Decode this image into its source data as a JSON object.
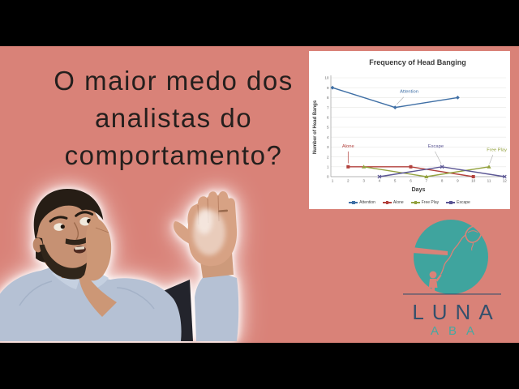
{
  "page": {
    "background": "#d98278",
    "letterbox": "#000000"
  },
  "headline": {
    "lines": [
      "O maior medo dos",
      "analistas do",
      "comportamento?"
    ],
    "color": "#241f1d"
  },
  "chart_data": {
    "type": "line",
    "title": "Frequency of Head Banging",
    "xlabel": "Days",
    "ylabel": "Number of Head Bangs",
    "xlim": [
      0.5,
      12.5
    ],
    "ylim": [
      0,
      10
    ],
    "x_ticks": [
      1,
      2,
      3,
      4,
      5,
      6,
      7,
      8,
      9,
      10,
      11,
      12
    ],
    "y_ticks": [
      0,
      1,
      2,
      3,
      4,
      5,
      6,
      7,
      8,
      9,
      10
    ],
    "grid": true,
    "legend_position": "bottom",
    "background": "#ffffff",
    "series": [
      {
        "name": "Attention",
        "color": "#3f6fa5",
        "marker": "diamond",
        "points": [
          [
            1,
            9
          ],
          [
            5,
            7
          ],
          [
            9,
            8
          ]
        ]
      },
      {
        "name": "Alone",
        "color": "#b2403c",
        "marker": "square",
        "points": [
          [
            2,
            1
          ],
          [
            6,
            1
          ],
          [
            10,
            0
          ]
        ]
      },
      {
        "name": "Free Play",
        "color": "#93a23f",
        "marker": "triangle",
        "points": [
          [
            3,
            1
          ],
          [
            7,
            0
          ],
          [
            11,
            1
          ]
        ]
      },
      {
        "name": "Escape",
        "color": "#5b5694",
        "marker": "x",
        "points": [
          [
            4,
            0
          ],
          [
            8,
            1
          ],
          [
            12,
            0
          ]
        ]
      }
    ],
    "annotations": [
      {
        "text": "Attention",
        "color": "#3f6fa5",
        "label_at": [
          5.9,
          8.5
        ],
        "line": [
          [
            5.55,
            8.05
          ],
          [
            5.1,
            7.3
          ]
        ],
        "line_color": "#b5b5b5"
      },
      {
        "text": "Alone",
        "color": "#b2403c",
        "label_at": [
          2,
          2.95
        ],
        "line": [
          [
            2,
            2.55
          ],
          [
            2,
            1.35
          ]
        ],
        "line_color": "#b2403c"
      },
      {
        "text": "Escape",
        "color": "#5b5694",
        "label_at": [
          7.6,
          2.95
        ],
        "line": [
          [
            7.55,
            2.55
          ],
          [
            7.95,
            1.3
          ]
        ],
        "line_color": "#b5b5b5"
      },
      {
        "text": "Free Play",
        "color": "#93a23f",
        "label_at": [
          11.5,
          2.6
        ],
        "line": [
          [
            11.25,
            2.2
          ],
          [
            11.03,
            1.3
          ]
        ],
        "line_color": "#b5b5b5"
      }
    ]
  },
  "logo": {
    "name": "LUNA",
    "sub": "ABA",
    "circle_color": "#3fa49e",
    "name_color": "#34506c",
    "sub_color": "#47a8a1",
    "line_color": "#35506b"
  },
  "person": {
    "skin": "#c69173",
    "hair": "#261d15",
    "shirt": "#b5c1d4"
  }
}
